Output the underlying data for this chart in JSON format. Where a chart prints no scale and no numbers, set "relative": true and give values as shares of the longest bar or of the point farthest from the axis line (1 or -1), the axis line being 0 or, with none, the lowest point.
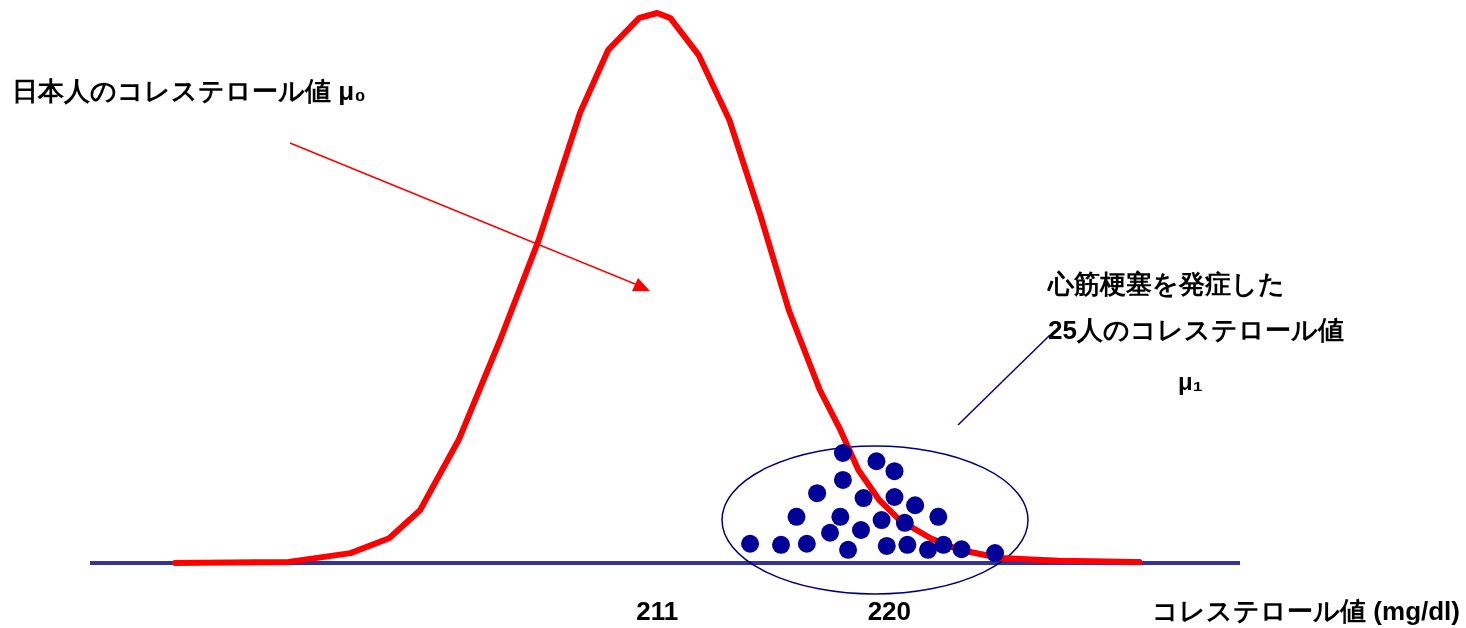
{
  "chart_data": {
    "type": "line",
    "relative": true,
    "xlabel": "コレステロール値 (mg/dl)",
    "xlim": [
      189,
      233.6
    ],
    "xticks": [
      211,
      220
    ],
    "annotations": [
      "日本人のコレステロール値 μ₀",
      "心筋梗塞を発症した\n25人のコレステロール値",
      "μ₁"
    ],
    "series": [
      {
        "color": "#ff0000",
        "x": [
          192.3,
          196.7,
          199.1,
          200.6,
          201.8,
          203.3,
          204.9,
          206.4,
          208.0,
          209.1,
          210.3,
          211.0,
          211.5,
          212.6,
          213.8,
          215.0,
          216.1,
          217.3,
          218.1,
          218.8,
          219.6,
          220.4,
          221.6,
          222.7,
          224.3,
          226.6,
          229.7
        ],
        "values": [
          0,
          0.002,
          0.018,
          0.045,
          0.096,
          0.224,
          0.405,
          0.587,
          0.818,
          0.933,
          0.991,
          1,
          0.991,
          0.924,
          0.805,
          0.632,
          0.46,
          0.315,
          0.242,
          0.169,
          0.115,
          0.078,
          0.045,
          0.024,
          0.009,
          0.004,
          0.002
        ]
      },
      {
        "type": "scatter",
        "color": "#000099",
        "marker": "circle",
        "x": [
          214.6,
          215.8,
          216.8,
          217.7,
          218.4,
          218.9,
          219.9,
          220.7,
          221.5,
          222.1,
          222.8,
          224.1,
          216.4,
          218.1,
          219.7,
          220.6,
          221.9,
          217.2,
          219.0,
          220.2,
          221.0,
          218.2,
          220.2,
          218.2,
          219.5
        ],
        "values": [
          0.035,
          0.033,
          0.035,
          0.055,
          0.024,
          0.06,
          0.031,
          0.033,
          0.024,
          0.033,
          0.025,
          0.018,
          0.084,
          0.084,
          0.078,
          0.073,
          0.084,
          0.127,
          0.118,
          0.12,
          0.105,
          0.151,
          0.167,
          0.2,
          0.185
        ]
      }
    ]
  }
}
